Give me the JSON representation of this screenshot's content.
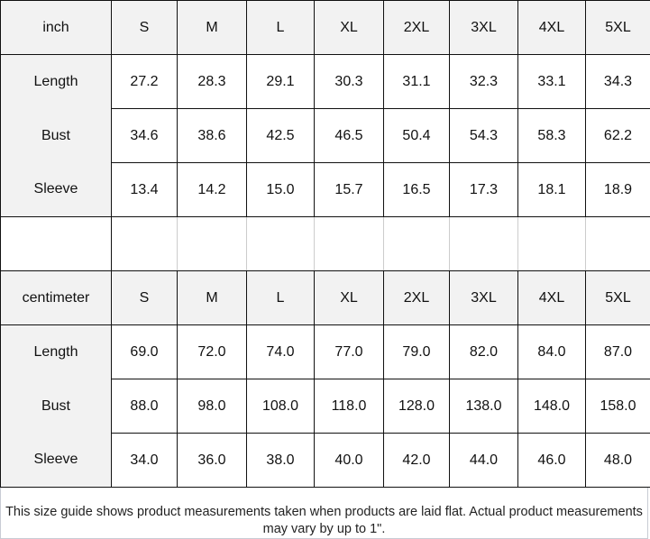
{
  "sizes": [
    "S",
    "M",
    "L",
    "XL",
    "2XL",
    "3XL",
    "4XL",
    "5XL"
  ],
  "tables": [
    {
      "unit": "inch",
      "rows": [
        {
          "label": "Length",
          "values": [
            "27.2",
            "28.3",
            "29.1",
            "30.3",
            "31.1",
            "32.3",
            "33.1",
            "34.3"
          ]
        },
        {
          "label": "Bust",
          "values": [
            "34.6",
            "38.6",
            "42.5",
            "46.5",
            "50.4",
            "54.3",
            "58.3",
            "62.2"
          ]
        },
        {
          "label": "Sleeve",
          "values": [
            "13.4",
            "14.2",
            "15.0",
            "15.7",
            "16.5",
            "17.3",
            "18.1",
            "18.9"
          ]
        }
      ]
    },
    {
      "unit": "centimeter",
      "rows": [
        {
          "label": "Length",
          "values": [
            "69.0",
            "72.0",
            "74.0",
            "77.0",
            "79.0",
            "82.0",
            "84.0",
            "87.0"
          ]
        },
        {
          "label": "Bust",
          "values": [
            "88.0",
            "98.0",
            "108.0",
            "118.0",
            "128.0",
            "138.0",
            "148.0",
            "158.0"
          ]
        },
        {
          "label": "Sleeve",
          "values": [
            "34.0",
            "36.0",
            "38.0",
            "40.0",
            "42.0",
            "44.0",
            "46.0",
            "48.0"
          ]
        }
      ]
    }
  ],
  "note": "This size guide shows product measurements taken when products are laid flat. Actual product measurements may vary by up to 1\"."
}
